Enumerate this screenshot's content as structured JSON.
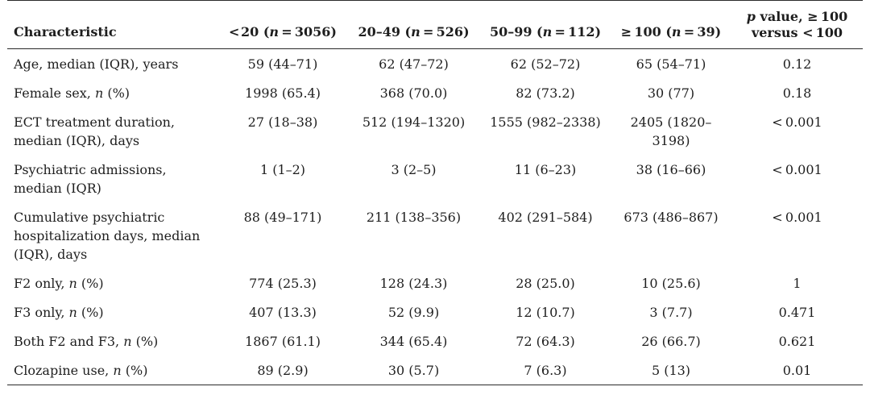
{
  "table": {
    "headers": [
      "Characteristic",
      "< 20 (n = 3056)",
      "20–49 (n = 526)",
      "50–99 (n = 112)",
      "≥ 100 (n = 39)",
      "p value, ≥ 100 versus < 100"
    ],
    "rows": [
      {
        "label": "Age, median (IQR), years",
        "cells": [
          "59 (44–71)",
          "62 (47–72)",
          "62 (52–72)",
          "65 (54–71)",
          "0.12"
        ]
      },
      {
        "label": "Female sex, n (%)",
        "cells": [
          "1998 (65.4)",
          "368 (70.0)",
          "82 (73.2)",
          "30 (77)",
          "0.18"
        ]
      },
      {
        "label": "ECT treatment duration, median (IQR), days",
        "cells": [
          "27 (18–38)",
          "512 (194–1320)",
          "1555 (982–2338)",
          "2405 (1820–3198)",
          "< 0.001"
        ]
      },
      {
        "label": "Psychiatric admissions, median (IQR)",
        "cells": [
          "1 (1–2)",
          "3 (2–5)",
          "11 (6–23)",
          "38 (16–66)",
          "< 0.001"
        ]
      },
      {
        "label": "Cumulative psychiatric hospitalization days, median (IQR), days",
        "cells": [
          "88 (49–171)",
          "211 (138–356)",
          "402 (291–584)",
          "673 (486–867)",
          "< 0.001"
        ]
      },
      {
        "label": "F2 only, n (%)",
        "cells": [
          "774 (25.3)",
          "128 (24.3)",
          "28 (25.0)",
          "10 (25.6)",
          "1"
        ]
      },
      {
        "label": "F3 only, n (%)",
        "cells": [
          "407 (13.3)",
          "52 (9.9)",
          "12 (10.7)",
          "3 (7.7)",
          "0.471"
        ]
      },
      {
        "label": "Both F2 and F3, n (%)",
        "cells": [
          "1867 (61.1)",
          "344 (65.4)",
          "72 (64.3)",
          "26 (66.7)",
          "0.621"
        ]
      },
      {
        "label": "Clozapine use, n (%)",
        "cells": [
          "89 (2.9)",
          "30 (5.7)",
          "7 (6.3)",
          "5 (13)",
          "0.01"
        ]
      }
    ]
  }
}
